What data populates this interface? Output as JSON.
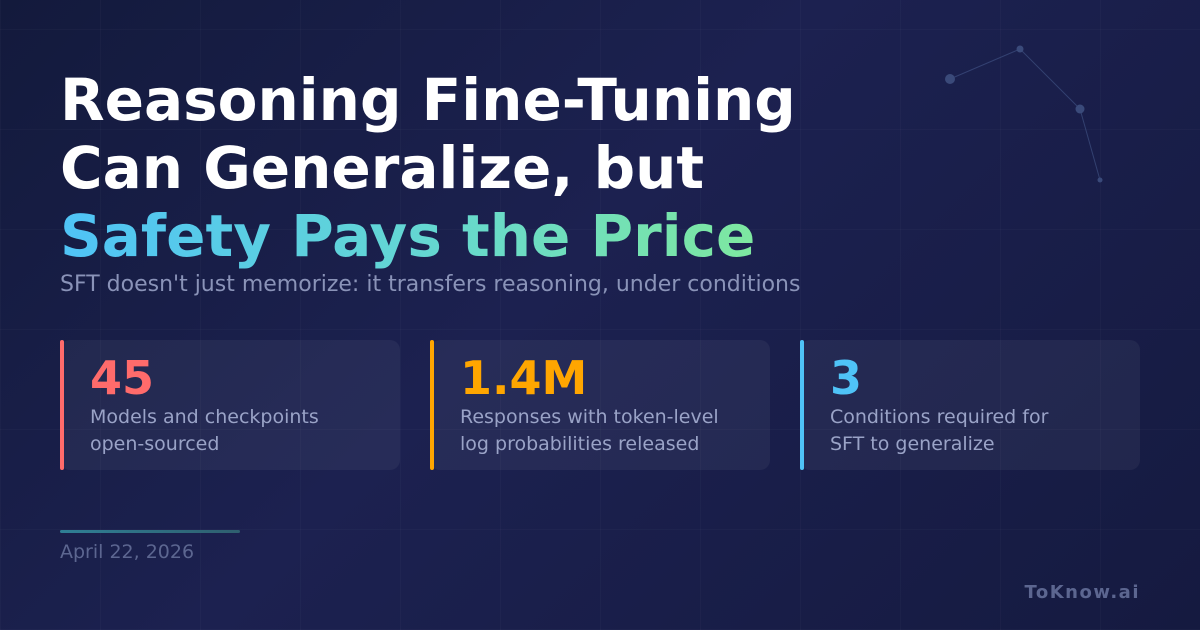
{
  "title": {
    "line1": "Reasoning Fine-Tuning",
    "line2": "Can Generalize, but",
    "highlight": "Safety Pays the Price"
  },
  "subtitle": "SFT doesn't just memorize: it transfers reasoning, under conditions",
  "stats": [
    {
      "number": "45",
      "label_line1": "Models and checkpoints",
      "label_line2": "open-sourced",
      "color": "#ff6b6b"
    },
    {
      "number": "1.4M",
      "label_line1": "Responses with token-level",
      "label_line2": "log probabilities released",
      "color": "#ffa600"
    },
    {
      "number": "3",
      "label_line1": "Conditions required for",
      "label_line2": "SFT to generalize",
      "color": "#4fc3f7"
    }
  ],
  "date": "April 22, 2026",
  "brand": "ToKnow.ai"
}
